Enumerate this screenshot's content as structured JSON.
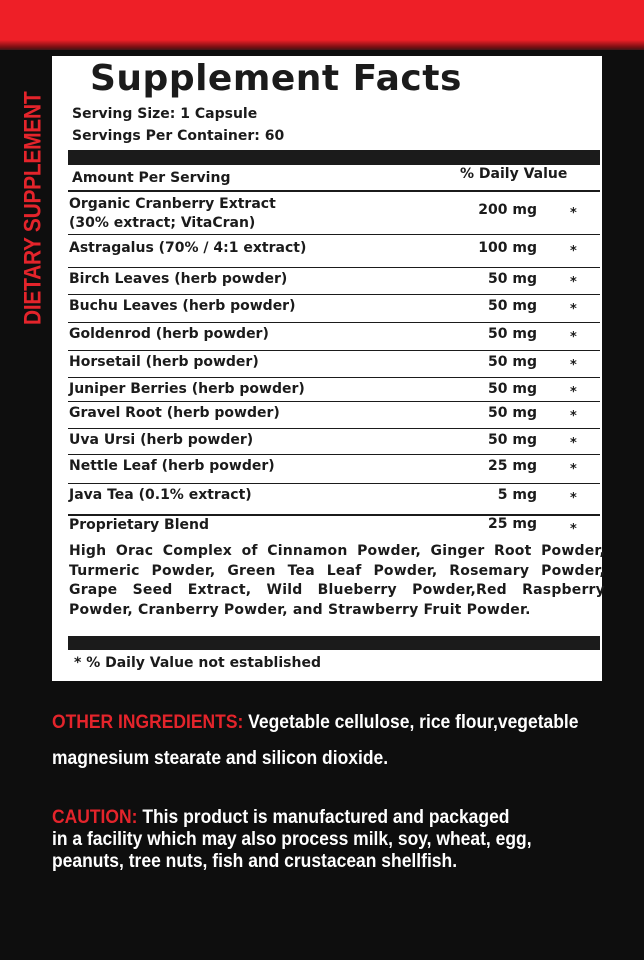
{
  "side_label": "DIETARY SUPPLEMENT",
  "title": "Supplement Facts",
  "serving_size": "Serving Size: 1 Capsule",
  "servings_per_container": "Servings Per Container: 60",
  "header": {
    "amount": "Amount Per Serving",
    "dv": "% Daily Value"
  },
  "rows": [
    {
      "name": "Organic Cranberry Extract",
      "sub": "(30% extract; VitaCran)",
      "amount": "200 mg",
      "dv": "*"
    },
    {
      "name": "Astragalus (70% / 4:1 extract)",
      "amount": "100 mg",
      "dv": "*"
    },
    {
      "name": "Birch Leaves (herb powder)",
      "amount": "50 mg",
      "dv": "*"
    },
    {
      "name": "Buchu Leaves (herb powder)",
      "amount": "50 mg",
      "dv": "*"
    },
    {
      "name": "Goldenrod (herb powder)",
      "amount": "50 mg",
      "dv": "*"
    },
    {
      "name": "Horsetail (herb powder)",
      "amount": "50 mg",
      "dv": "*"
    },
    {
      "name": "Juniper Berries (herb powder)",
      "amount": "50 mg",
      "dv": "*"
    },
    {
      "name": "Gravel Root (herb powder)",
      "amount": "50 mg",
      "dv": "*"
    },
    {
      "name": "Uva Ursi (herb powder)",
      "amount": "50 mg",
      "dv": "*"
    },
    {
      "name": "Nettle Leaf (herb powder)",
      "amount": "25 mg",
      "dv": "*"
    },
    {
      "name": "Java Tea (0.1% extract)",
      "amount": "5 mg",
      "dv": "*"
    }
  ],
  "blend": {
    "name": "Proprietary Blend",
    "amount": "25 mg",
    "dv": "*",
    "description": "High Orac Complex of Cinnamon Powder, Ginger Root Powder, Turmeric Powder, Green Tea Leaf Powder, Rosemary Powder, Grape Seed Extract, Wild Blueberry Powder,Red Raspberry Powder, Cranberry Powder, and Strawberry Fruit Powder."
  },
  "footnote": "* % Daily Value not established",
  "other": {
    "label": "OTHER INGREDIENTS:",
    "line1": "Vegetable cellulose, rice flour,vegetable",
    "line2": "magnesium stearate and silicon dioxide."
  },
  "caution": {
    "label": "CAUTION:",
    "line1": "This product is manufactured and packaged",
    "line2": "in a facility which may also process milk, soy, wheat, egg,",
    "line3": "peanuts, tree nuts, fish and crustacean shellfish."
  },
  "colors": {
    "red": "#e4242b",
    "background": "#0e0e0e",
    "panel": "#ffffff"
  }
}
